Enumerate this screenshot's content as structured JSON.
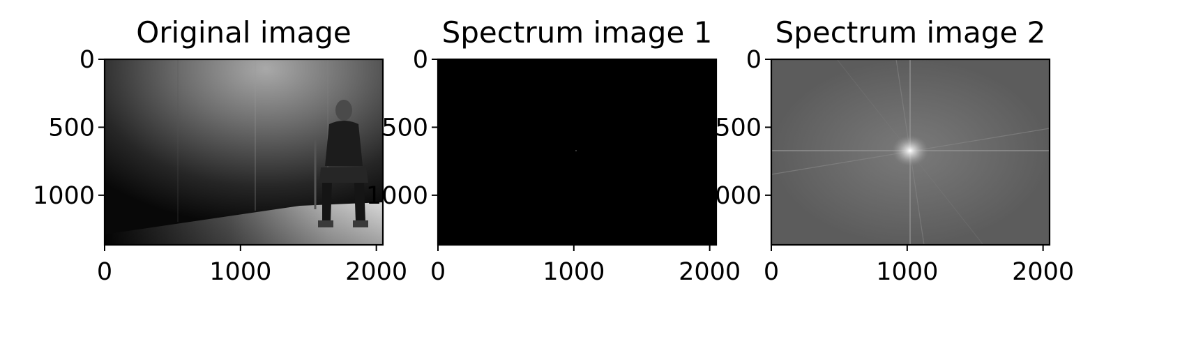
{
  "chart_data": [
    {
      "type": "image",
      "title": "Original image",
      "image_content": "grayscale photo: man in hoodie sitting on a chair in a dark concrete room",
      "xlim": [
        0,
        2048
      ],
      "ylim": [
        1365,
        0
      ],
      "x_ticks": [
        0,
        1000,
        2000
      ],
      "y_ticks": [
        0,
        500,
        1000
      ],
      "x_tick_labels": [
        "0",
        "1000",
        "2000"
      ],
      "y_tick_labels": [
        "0",
        "500",
        "1000"
      ],
      "colormap": "gray"
    },
    {
      "type": "image",
      "title": "Spectrum image 1",
      "image_content": "magnitude spectrum, appears almost entirely black",
      "xlim": [
        0,
        2048
      ],
      "ylim": [
        1365,
        0
      ],
      "x_ticks": [
        0,
        1000,
        2000
      ],
      "y_ticks": [
        0,
        500,
        1000
      ],
      "x_tick_labels": [
        "0",
        "1000",
        "2000"
      ],
      "y_tick_labels": [
        "0",
        "500",
        "1000"
      ],
      "colormap": "gray"
    },
    {
      "type": "image",
      "title": "Spectrum image 2",
      "image_content": "log magnitude spectrum, gray field with bright center cross",
      "xlim": [
        0,
        2048
      ],
      "ylim": [
        1365,
        0
      ],
      "x_ticks": [
        0,
        1000,
        2000
      ],
      "y_ticks": [
        0,
        500,
        1000
      ],
      "x_tick_labels": [
        "0",
        "1000",
        "2000"
      ],
      "y_tick_labels": [
        "0",
        "500",
        "1000"
      ],
      "colormap": "gray"
    }
  ],
  "colors": {
    "background": "#ffffff",
    "axis": "#000000",
    "original_wall": "#8a8a8a",
    "spectrum1_fill": "#000000",
    "spectrum2_fill": "#6a6a6a",
    "spectrum2_center": "#f0f0f0"
  }
}
